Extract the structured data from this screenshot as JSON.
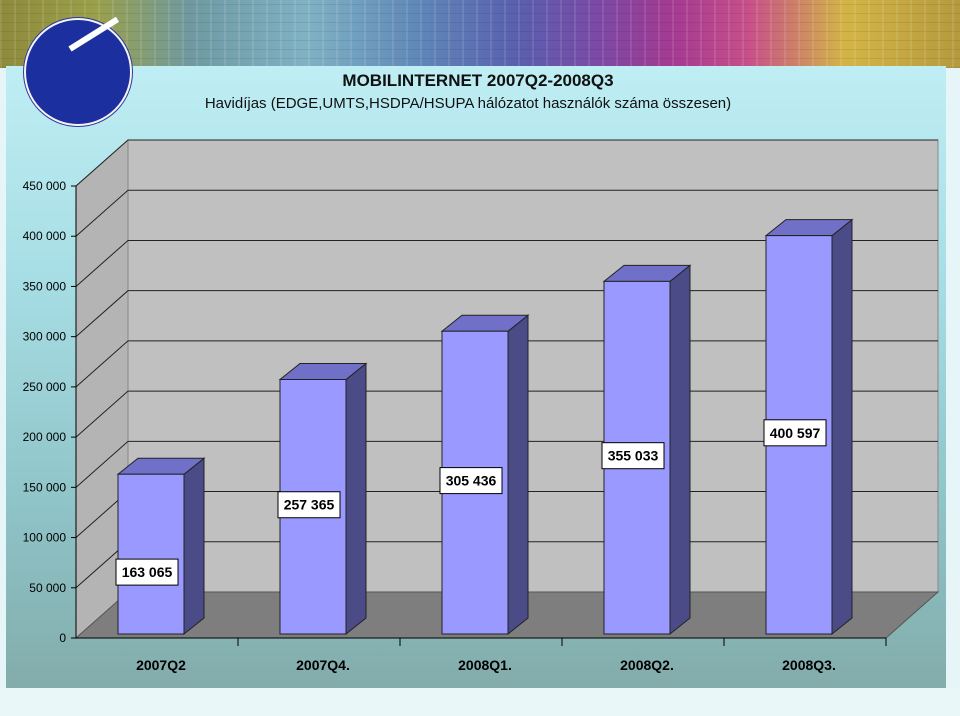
{
  "chart_data": {
    "type": "bar",
    "title": "MOBILINTERNET 2007Q2-2008Q3",
    "subtitle": "Havidíjas (EDGE,UMTS,HSDPA/HSUPA hálózatot használók száma összesen)",
    "categories": [
      "2007Q2",
      "2007Q4.",
      "2008Q1.",
      "2008Q2.",
      "2008Q3."
    ],
    "values": [
      163065,
      257365,
      305436,
      355033,
      400597
    ],
    "data_labels": [
      "163 065",
      "257 365",
      "305 436",
      "355 033",
      "400 597"
    ],
    "ylim": [
      0,
      450000
    ],
    "yticks": [
      0,
      50000,
      100000,
      150000,
      200000,
      250000,
      300000,
      350000,
      400000,
      450000
    ],
    "ytick_labels": [
      "0",
      "50 000",
      "100 000",
      "150 000",
      "200 000",
      "250 000",
      "300 000",
      "350 000",
      "400 000",
      "450 000"
    ],
    "grid": true,
    "style": "3d-column",
    "colors": {
      "bar_front": "#9999ff",
      "bar_side": "#4b4b88",
      "bar_top": "#7070c8",
      "wall": "#c0c0c0",
      "floor": "#7e7e7e"
    }
  }
}
